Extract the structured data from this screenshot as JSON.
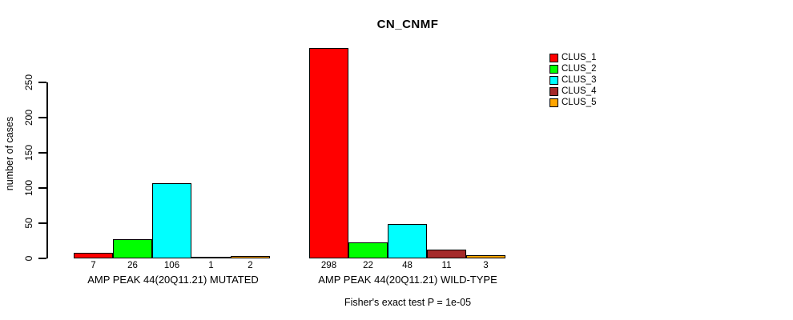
{
  "chart_data": {
    "type": "bar",
    "title": "CN_CNMF",
    "ylabel": "number of cases",
    "xlabel": "",
    "ylim": [
      0,
      250
    ],
    "yticks": [
      0,
      50,
      100,
      150,
      200,
      250
    ],
    "grid": false,
    "legend_position": "right",
    "categories": [
      "AMP PEAK 44(20Q11.21) MUTATED",
      "AMP PEAK 44(20Q11.21) WILD-TYPE"
    ],
    "series": [
      {
        "name": "CLUS_1",
        "color": "#FF0000",
        "values": [
          7,
          298
        ]
      },
      {
        "name": "CLUS_2",
        "color": "#00FF00",
        "values": [
          26,
          22
        ]
      },
      {
        "name": "CLUS_3",
        "color": "#00FFFF",
        "values": [
          106,
          48
        ]
      },
      {
        "name": "CLUS_4",
        "color": "#A52A2A",
        "values": [
          1,
          11
        ]
      },
      {
        "name": "CLUS_5",
        "color": "#FFA500",
        "values": [
          2,
          3
        ]
      }
    ],
    "bar_value_labels": {
      "mutated": [
        "7",
        "26",
        "106",
        "1",
        "2"
      ],
      "wild_type": [
        "298",
        "22",
        "48",
        "11",
        "3"
      ]
    },
    "annotation": "Fisher's exact test P = 1e-05",
    "axis_color": "#000000",
    "background_color": "#FFFFFF"
  }
}
